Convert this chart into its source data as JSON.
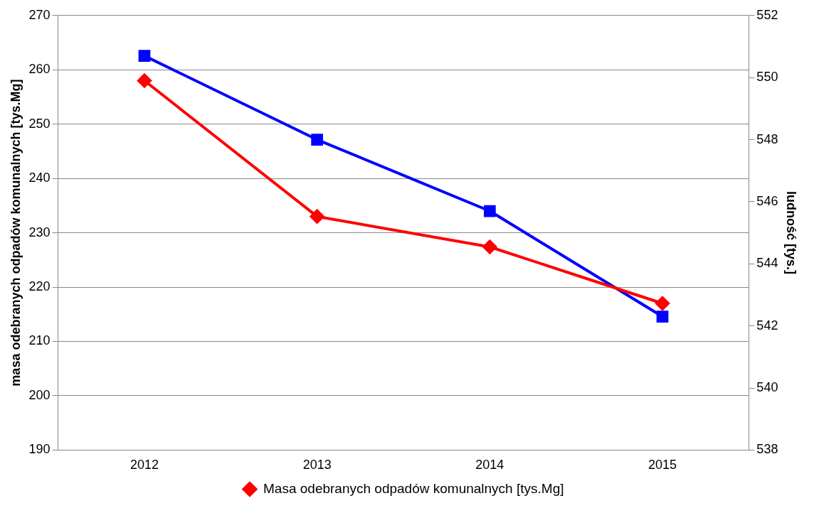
{
  "chart_data": {
    "type": "line",
    "ylabel": "masa odebranych odpadów komunalnych [tys.Mg]",
    "y2label": "ludność [tys.]",
    "categories": [
      "2012",
      "2013",
      "2014",
      "2015"
    ],
    "series": [
      {
        "name": "Masa odebranych odpadów komunalnych [tys.Mg]",
        "color": "#ff0000",
        "values": [
          258,
          233,
          227.4,
          217
        ],
        "marker": "diamond"
      },
      {
        "color": "#0000ff",
        "values": [
          550.7,
          548.0,
          545.7,
          542.3
        ],
        "axis": "y2",
        "marker": "square"
      }
    ],
    "ylim": [
      190,
      270
    ],
    "yticks": [
      190,
      200,
      210,
      220,
      230,
      240,
      250,
      260,
      270
    ],
    "y2lim": [
      538,
      552
    ],
    "y2ticks": [
      538,
      540,
      542,
      544,
      546,
      548,
      550,
      552
    ],
    "grid": "y",
    "legend": "bottom",
    "line_style": "solid"
  }
}
